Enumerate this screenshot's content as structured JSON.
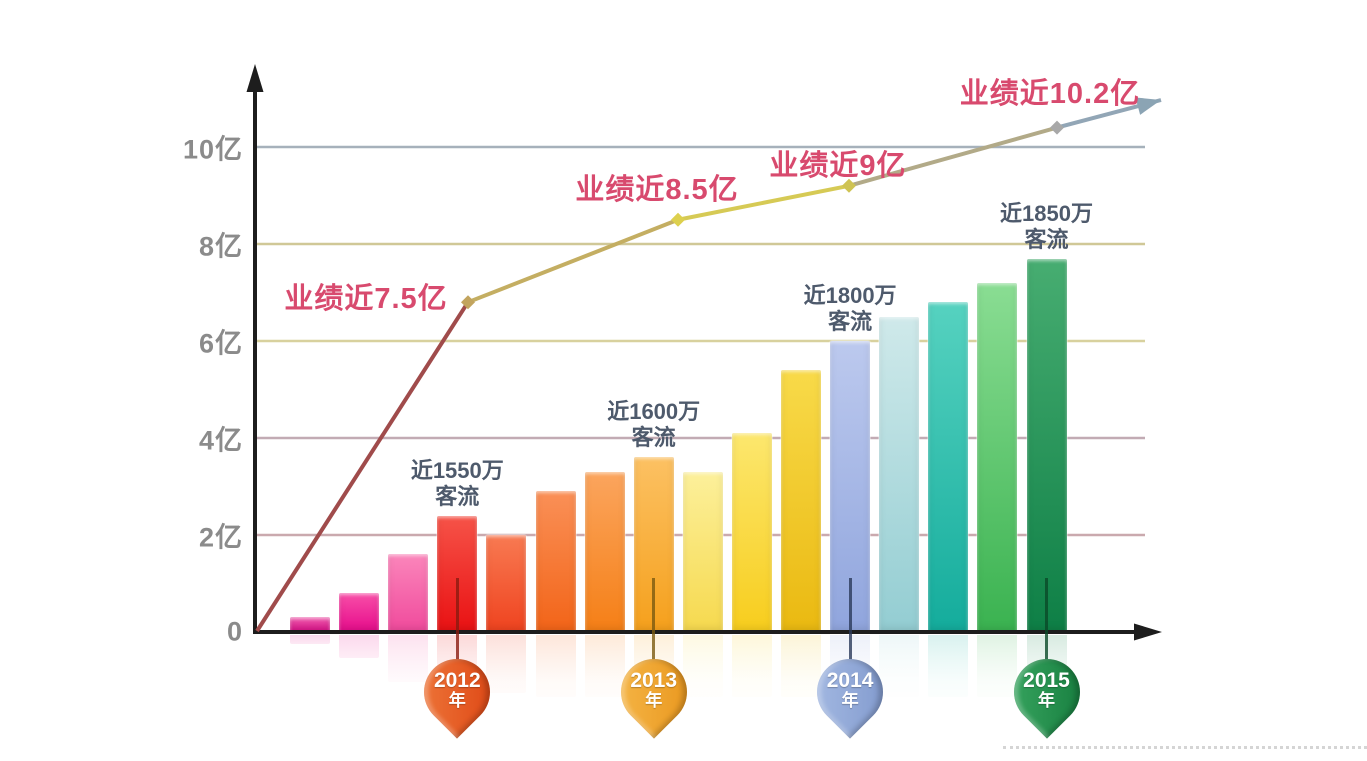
{
  "chart_data": {
    "type": "bar",
    "subtype": "combo-bar-line-infographic",
    "title": "",
    "x_unit": "年",
    "bar_unit": "亿",
    "grid": "on",
    "ylim": [
      0,
      11
    ],
    "y_axis_ticks": [
      {
        "label": "0",
        "value": 0
      },
      {
        "label": "2亿",
        "value": 2
      },
      {
        "label": "4亿",
        "value": 4
      },
      {
        "label": "6亿",
        "value": 6
      },
      {
        "label": "8亿",
        "value": 8
      },
      {
        "label": "10亿",
        "value": 10
      }
    ],
    "bars": [
      {
        "value_yi": 0.3,
        "top_color": "#ef5fae",
        "bottom_color": "#d80c86"
      },
      {
        "value_yi": 0.8,
        "top_color": "#f84fa8",
        "bottom_color": "#e60b8b"
      },
      {
        "value_yi": 1.6,
        "top_color": "#fb86bb",
        "bottom_color": "#f04a9c"
      },
      {
        "value_yi": 2.4,
        "top_color": "#f65348",
        "bottom_color": "#e91113"
      },
      {
        "value_yi": 2.0,
        "top_color": "#f87a52",
        "bottom_color": "#ef431f"
      },
      {
        "value_yi": 2.9,
        "top_color": "#fa9057",
        "bottom_color": "#f26418"
      },
      {
        "value_yi": 3.3,
        "top_color": "#fba55e",
        "bottom_color": "#f57f16"
      },
      {
        "value_yi": 3.6,
        "top_color": "#fcc163",
        "bottom_color": "#f5a01c"
      },
      {
        "value_yi": 3.3,
        "top_color": "#fcf09b",
        "bottom_color": "#f6d94e"
      },
      {
        "value_yi": 4.1,
        "top_color": "#fce76e",
        "bottom_color": "#f7cd1d"
      },
      {
        "value_yi": 5.4,
        "top_color": "#f8da49",
        "bottom_color": "#eab911"
      },
      {
        "value_yi": 6.0,
        "top_color": "#bcc9ee",
        "bottom_color": "#90a5dd"
      },
      {
        "value_yi": 6.5,
        "top_color": "#cfe9ea",
        "bottom_color": "#93cdd2"
      },
      {
        "value_yi": 6.8,
        "top_color": "#56d2c0",
        "bottom_color": "#14ac9c"
      },
      {
        "value_yi": 7.2,
        "top_color": "#8add93",
        "bottom_color": "#3ab250"
      },
      {
        "value_yi": 7.7,
        "top_color": "#47ad71",
        "bottom_color": "#0e7f46"
      }
    ],
    "trend_line": {
      "annotations": [
        "业绩近7.5亿",
        "业绩近8.5亿",
        "业绩近9亿",
        "业绩近10.2亿"
      ],
      "stated_values_yi": [
        7.5,
        8.5,
        9,
        10.2
      ],
      "dot_heights_yi": [
        0,
        6.8,
        8.5,
        9.2,
        10.4
      ]
    },
    "traffic_annotations": [
      {
        "line1": "近1550万",
        "line2": "客流",
        "bar_index": 4
      },
      {
        "line1": "近1600万",
        "line2": "客流",
        "bar_index": 8
      },
      {
        "line1": "近1800万",
        "line2": "客流",
        "bar_index": 12
      },
      {
        "line1": "近1850万",
        "line2": "客流",
        "bar_index": 16
      }
    ],
    "year_pins": [
      {
        "year": "2012",
        "suffix": "年"
      },
      {
        "year": "2013",
        "suffix": "年"
      },
      {
        "year": "2014",
        "suffix": "年"
      },
      {
        "year": "2015",
        "suffix": "年"
      }
    ]
  },
  "colors": {
    "background": "#ffffff",
    "axis": "#1d1d1d",
    "tick_label": "#8b8b8b",
    "perf_label": "#d84a6e",
    "traffic_label": "#4e5a6c",
    "gridlines": {
      "2": "#caa9ae",
      "4": "#c2abb4",
      "6": "#d8d19e",
      "8": "#d0c897",
      "10": "#a6b1bb"
    },
    "line_segments": [
      "#a04b4b",
      "#c4ae62",
      "#d6ca55",
      "#b2aa88",
      "#92a6b6"
    ],
    "line_dots": [
      "#c2a45e",
      "#ddd04e",
      "#cfc353",
      "#a8a8a8"
    ],
    "line_arrow": "#8ba4b4",
    "pin_fills": [
      [
        "#ef7a3c",
        "#dd4312"
      ],
      [
        "#f6b84a",
        "#e8941a"
      ],
      [
        "#a7bce4",
        "#7e97cc"
      ],
      [
        "#3aa862",
        "#147a3c"
      ]
    ],
    "pin_needles": [
      "#8a1c10",
      "#7a5a10",
      "#2a3a5a",
      "#0a4a28"
    ],
    "pin_text": "#ffffff"
  }
}
